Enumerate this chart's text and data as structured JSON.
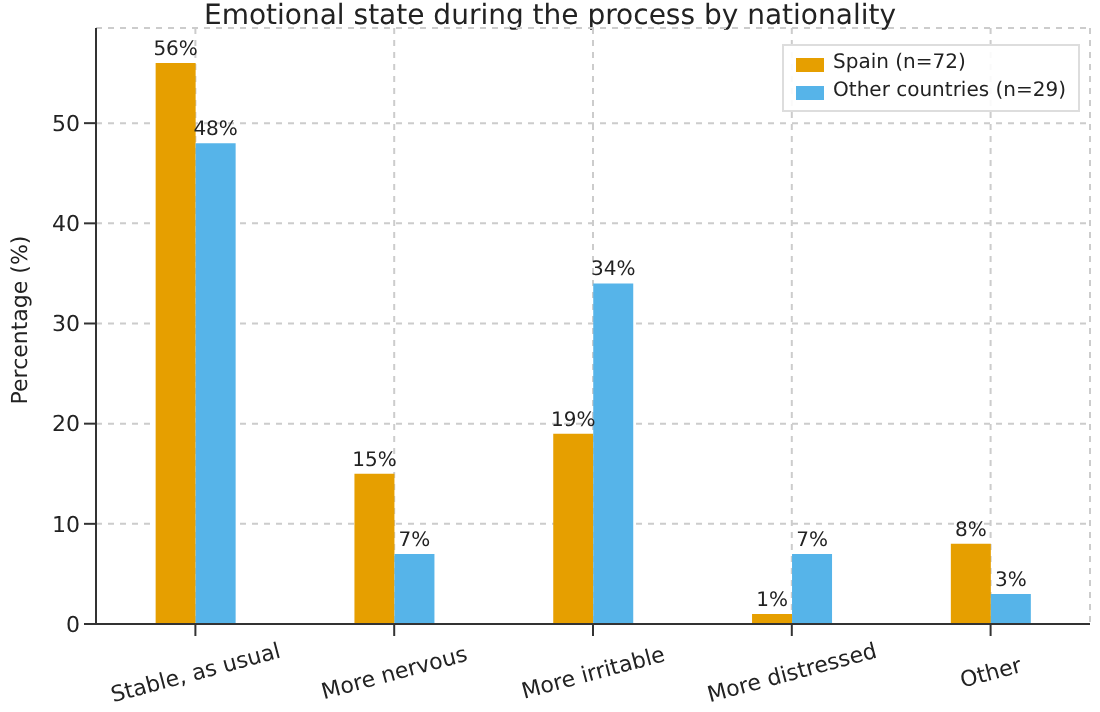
{
  "chart_data": {
    "type": "bar",
    "title": "Emotional state during the process by nationality",
    "ylabel": "Percentage (%)",
    "categories": [
      "Stable, as usual",
      "More nervous",
      "More irritable",
      "More distressed",
      "Other"
    ],
    "series": [
      {
        "name": "Spain (n=72)",
        "color": "#e69f00",
        "values": [
          56,
          15,
          19,
          1,
          8
        ],
        "value_labels": [
          "56%",
          "15%",
          "19%",
          "1%",
          "8%"
        ]
      },
      {
        "name": "Other countries (n=29)",
        "color": "#56b4e9",
        "values": [
          48,
          7,
          34,
          7,
          3
        ],
        "value_labels": [
          "48%",
          "7%",
          "34%",
          "7%",
          "3%"
        ]
      }
    ],
    "ylim": [
      0,
      59.5
    ],
    "yticks": [
      0,
      10,
      20,
      30,
      40,
      50
    ],
    "grid": true,
    "legend": "top right"
  }
}
